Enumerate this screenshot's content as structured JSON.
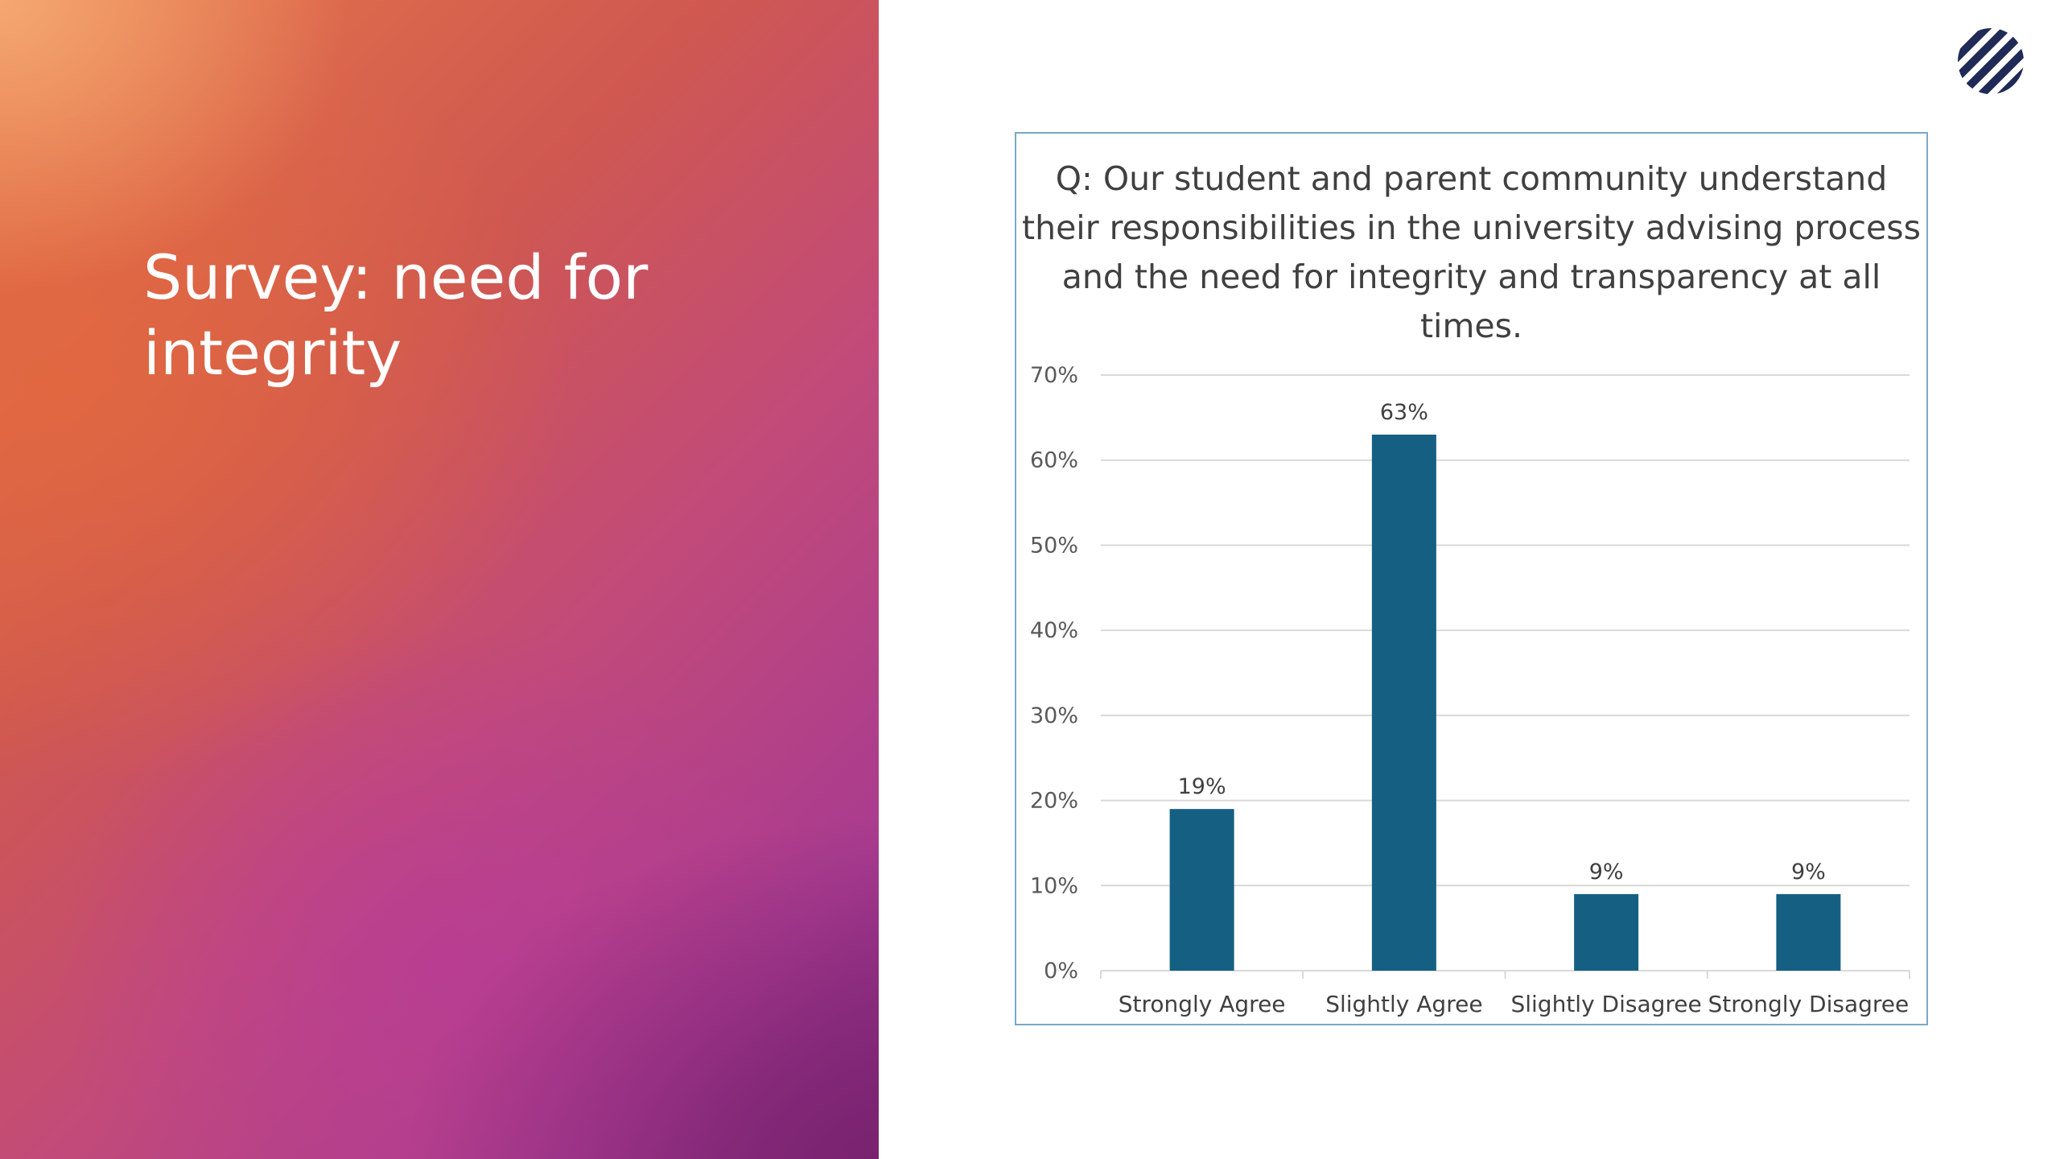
{
  "slide": {
    "title": "Survey: need for integrity"
  },
  "colors": {
    "bar": "#156082",
    "gridline": "#d9d9d9",
    "frame_border": "#7aa9c7",
    "logo": "#1f2a56"
  },
  "icons": {
    "logo": "striped-circle-logo-icon"
  },
  "chart_data": {
    "type": "bar",
    "title": "Q: Our student and parent community understand their responsibilities in the university advising process and the need for integrity and transparency at all times.",
    "categories": [
      "Strongly Agree",
      "Slightly Agree",
      "Slightly Disagree",
      "Strongly Disagree"
    ],
    "values": [
      19,
      63,
      9,
      9
    ],
    "data_labels": [
      "19%",
      "63%",
      "9%",
      "9%"
    ],
    "y_ticks": [
      "0%",
      "10%",
      "20%",
      "30%",
      "40%",
      "50%",
      "60%",
      "70%"
    ],
    "ylim": [
      0,
      70
    ],
    "y_unit": "%",
    "grid": true,
    "legend": "none",
    "xlabel": "",
    "ylabel": ""
  }
}
